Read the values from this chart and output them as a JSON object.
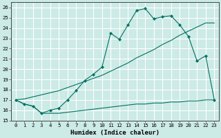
{
  "xlabel": "Humidex (Indice chaleur)",
  "xlim": [
    -0.5,
    23.5
  ],
  "ylim": [
    15,
    26.5
  ],
  "yticks": [
    15,
    16,
    17,
    18,
    19,
    20,
    21,
    22,
    23,
    24,
    25,
    26
  ],
  "xticks": [
    0,
    1,
    2,
    3,
    4,
    5,
    6,
    7,
    8,
    9,
    10,
    11,
    12,
    13,
    14,
    15,
    16,
    17,
    18,
    19,
    20,
    21,
    22,
    23
  ],
  "bg_color": "#cceae6",
  "grid_color": "#ffffff",
  "line_color": "#007060",
  "line1_y": [
    17.0,
    16.6,
    16.4,
    15.7,
    16.0,
    16.2,
    17.0,
    17.9,
    18.9,
    19.5,
    20.2,
    23.5,
    22.9,
    24.3,
    25.7,
    25.9,
    24.9,
    25.1,
    25.2,
    24.3,
    23.2,
    20.8,
    21.3,
    17.0
  ],
  "line2_y": [
    17.0,
    16.6,
    16.4,
    15.7,
    15.7,
    15.7,
    15.8,
    15.9,
    16.0,
    16.1,
    16.2,
    16.3,
    16.4,
    16.5,
    16.6,
    16.6,
    16.7,
    16.7,
    16.8,
    16.8,
    16.9,
    16.9,
    17.0,
    17.0
  ],
  "line3_y": [
    17.0,
    17.1,
    17.3,
    17.5,
    17.7,
    17.9,
    18.2,
    18.5,
    18.8,
    19.1,
    19.4,
    19.8,
    20.2,
    20.6,
    21.1,
    21.5,
    21.9,
    22.4,
    22.8,
    23.3,
    23.7,
    24.1,
    24.5,
    24.5
  ]
}
